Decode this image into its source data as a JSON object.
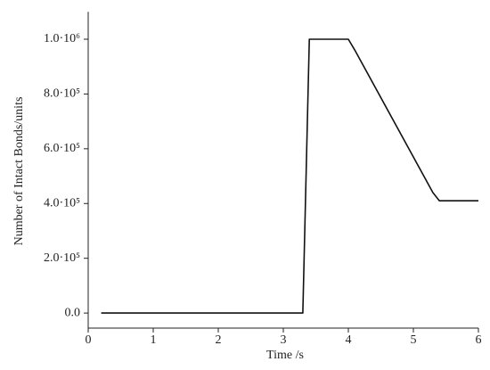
{
  "chart_data": {
    "type": "line",
    "xlabel": "Time /s",
    "ylabel": "Number of Intact Bonds/units",
    "x": [
      0.2,
      3.3,
      3.4,
      4.0,
      4.1,
      5.3,
      5.4,
      6.0
    ],
    "values": [
      0,
      0,
      1000000,
      1000000,
      960000,
      440000,
      410000,
      410000
    ],
    "color": "#111111",
    "xlim": [
      0,
      6
    ],
    "xticks": [
      0,
      1,
      2,
      3,
      4,
      5,
      6
    ],
    "ylim": [
      -55000,
      1100000
    ],
    "yticks": [
      {
        "value": 0,
        "label": "0.0"
      },
      {
        "value": 200000,
        "label": "2.0·10⁵"
      },
      {
        "value": 400000,
        "label": "4.0·10⁵"
      },
      {
        "value": 600000,
        "label": "6.0·10⁵"
      },
      {
        "value": 800000,
        "label": "8.0·10⁵"
      },
      {
        "value": 1000000,
        "label": "1.0·10⁶"
      }
    ],
    "grid": false
  }
}
